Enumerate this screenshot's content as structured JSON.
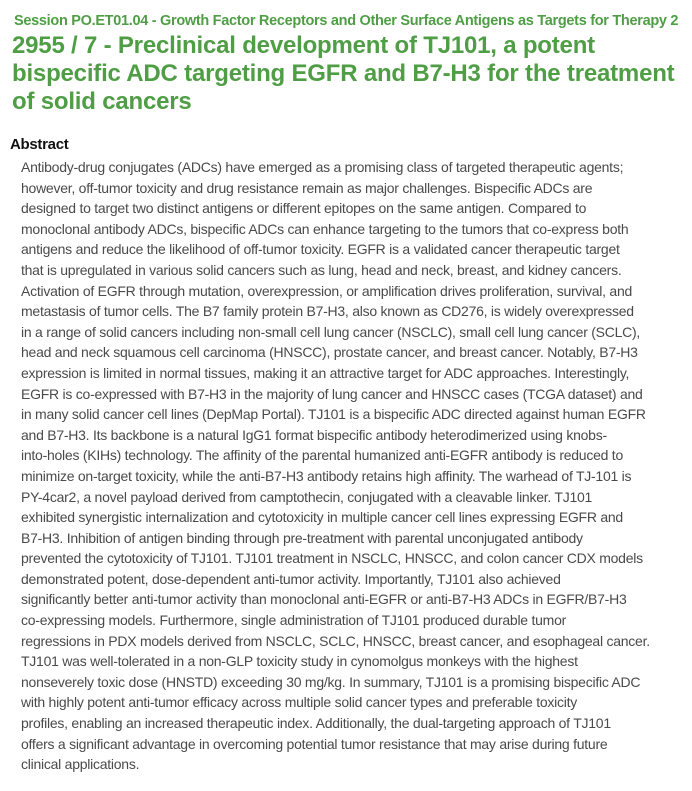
{
  "session": "Session PO.ET01.04 - Growth Factor Receptors and Other Surface Antigens as Targets for Therapy 2",
  "title_lines": [
    "2955 / 7 - Preclinical development of TJ101, a potent",
    "bispecific ADC targeting EGFR and B7-H3 for the treatment",
    "of solid cancers"
  ],
  "abstract": {
    "heading": "Abstract",
    "lines": [
      "Antibody-drug conjugates (ADCs) have emerged as a promising class of targeted therapeutic agents;",
      "however, off-tumor toxicity and drug resistance remain as major challenges. Bispecific ADCs are",
      "designed to target two distinct antigens or different epitopes on the same antigen. Compared to",
      "monoclonal antibody ADCs, bispecific ADCs can enhance targeting to the tumors that co-express both",
      "antigens and reduce the likelihood of off-tumor toxicity. EGFR is a validated cancer therapeutic target",
      "that is upregulated in various solid cancers such as lung, head and neck, breast, and kidney cancers.",
      "Activation of EGFR through mutation, overexpression, or amplification drives proliferation, survival, and",
      "metastasis of tumor cells. The B7 family protein B7-H3, also known as CD276, is widely overexpressed",
      "in a range of solid cancers including non-small cell lung cancer (NSCLC), small cell lung cancer (SCLC),",
      "head and neck squamous cell carcinoma (HNSCC), prostate cancer, and breast cancer. Notably, B7-H3",
      "expression is limited in normal tissues, making it an attractive target for ADC approaches. Interestingly,",
      "EGFR is co-expressed with B7-H3 in the majority of lung cancer and HNSCC cases (TCGA dataset) and",
      "in many solid cancer cell lines (DepMap Portal). TJ101 is a bispecific ADC directed against human EGFR",
      "and B7-H3. Its backbone is a natural IgG1 format bispecific antibody heterodimerized using knobs-",
      "into-holes (KIHs) technology. The affinity of the parental humanized anti-EGFR antibody is reduced to",
      "minimize on-target toxicity, while the anti-B7-H3 antibody retains high affinity. The warhead of TJ-101 is",
      "PY-4car2, a novel payload derived from camptothecin, conjugated with a cleavable linker. TJ101",
      "exhibited synergistic internalization and cytotoxicity in multiple cancer cell lines expressing EGFR and",
      "B7-H3. Inhibition of antigen binding through pre-treatment with parental unconjugated antibody",
      "prevented the cytotoxicity of TJ101. TJ101 treatment in NSCLC, HNSCC, and colon cancer CDX models",
      "demonstrated potent, dose-dependent anti-tumor activity. Importantly, TJ101 also achieved",
      "significantly better anti-tumor activity than monoclonal anti-EGFR or anti-B7-H3 ADCs in EGFR/B7-H3",
      "co-expressing models. Furthermore, single administration of TJ101 produced durable tumor",
      "regressions in PDX models derived from NSCLC, SCLC, HNSCC, breast cancer, and esophageal cancer.",
      "TJ101 was well-tolerated in a non-GLP toxicity study in cynomolgus monkeys with the highest",
      "nonseverely toxic dose (HNSTD) exceeding 30 mg/kg. In summary, TJ101 is a promising bispecific ADC",
      "with highly potent anti-tumor efficacy across multiple solid cancer types and preferable toxicity",
      "profiles, enabling an increased therapeutic index. Additionally, the dual-targeting approach of TJ101",
      "offers a significant advantage in overcoming potential tumor resistance that may arise during future",
      "clinical applications."
    ]
  },
  "colors": {
    "accent": "#4f9e45",
    "body_text": "#4a4a4a"
  }
}
